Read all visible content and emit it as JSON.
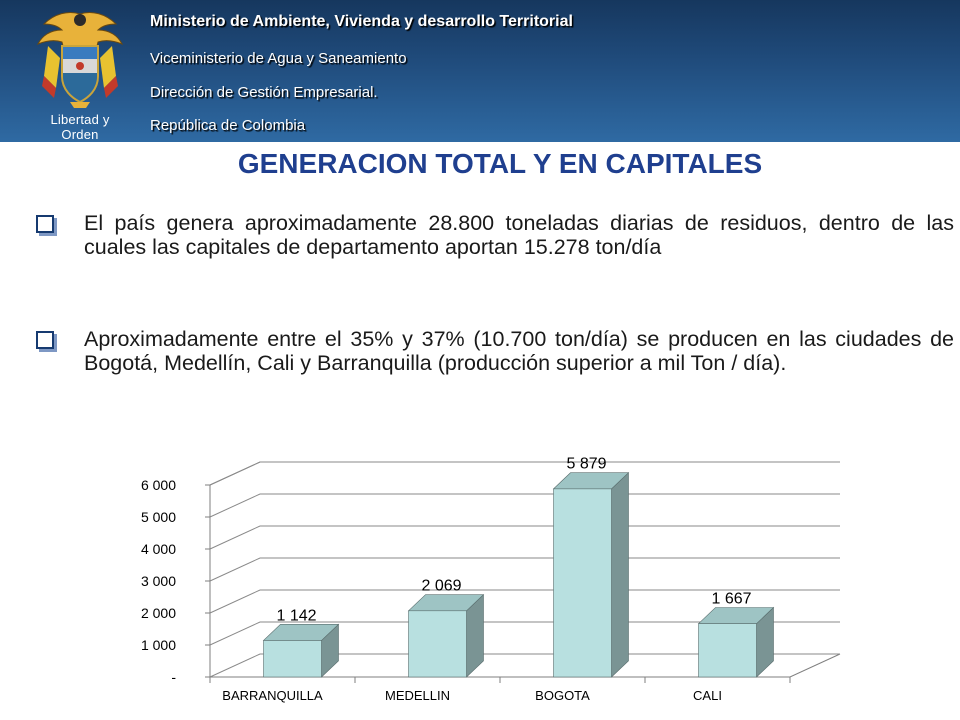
{
  "header": {
    "ministry": "Ministerio de Ambiente, Vivienda y desarrollo Territorial",
    "vice_ministry": "Viceministerio de Agua y Saneamiento",
    "direction": "Dirección de Gestión Empresarial.",
    "country": "República de Colombia",
    "crest_motto": "Libertad y Orden"
  },
  "title": "GENERACION TOTAL Y EN CAPITALES",
  "bullets": [
    {
      "text": "El país genera aproximadamente 28.800 toneladas diarias de residuos, dentro de las cuales las capitales de departamento aportan 15.278 ton/día"
    },
    {
      "text": "Aproximadamente entre el 35% y 37% (10.700 ton/día) se producen en las ciudades de Bogotá, Medellín, Cali y Barranquilla (producción superior a mil Ton / día)."
    }
  ],
  "colors": {
    "header_top": "#16375e",
    "header_bottom": "#2f6aa3",
    "title": "#1f3f8f",
    "bar_front": "#b8e0e0",
    "bar_side": "#7a9494",
    "bar_top": "#9ec4c4"
  },
  "chart_data": {
    "type": "bar",
    "style": "3d-column",
    "categories": [
      "BARRANQUILLA",
      "MEDELLIN",
      "BOGOTA",
      "CALI"
    ],
    "values": [
      1142,
      2069,
      5879,
      1667
    ],
    "value_labels": [
      "1 142",
      "2 069",
      "5 879",
      "1 667"
    ],
    "ylim": [
      0,
      6000
    ],
    "yticks": [
      0,
      1000,
      2000,
      3000,
      4000,
      5000,
      6000
    ],
    "ytick_labels": [
      "-",
      "1 000",
      "2 000",
      "3 000",
      "4 000",
      "5 000",
      "6 000"
    ],
    "grid": true,
    "legend": "none"
  }
}
